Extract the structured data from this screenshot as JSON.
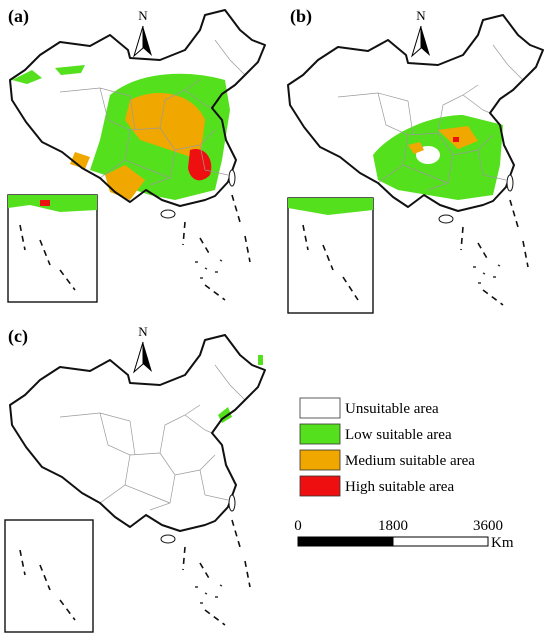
{
  "panels": [
    {
      "label": "(a)",
      "north": "N"
    },
    {
      "label": "(b)",
      "north": "N"
    },
    {
      "label": "(c)",
      "north": "N"
    }
  ],
  "legend": [
    {
      "label": "Unsuitable area",
      "color": "#ffffff"
    },
    {
      "label": "Low suitable area",
      "color": "#55e01e"
    },
    {
      "label": "Medium suitable area",
      "color": "#f0a800"
    },
    {
      "label": "High suitable area",
      "color": "#ee1010"
    }
  ],
  "scale_bar": {
    "ticks": [
      0,
      1800,
      3600
    ],
    "unit": "Km"
  }
}
